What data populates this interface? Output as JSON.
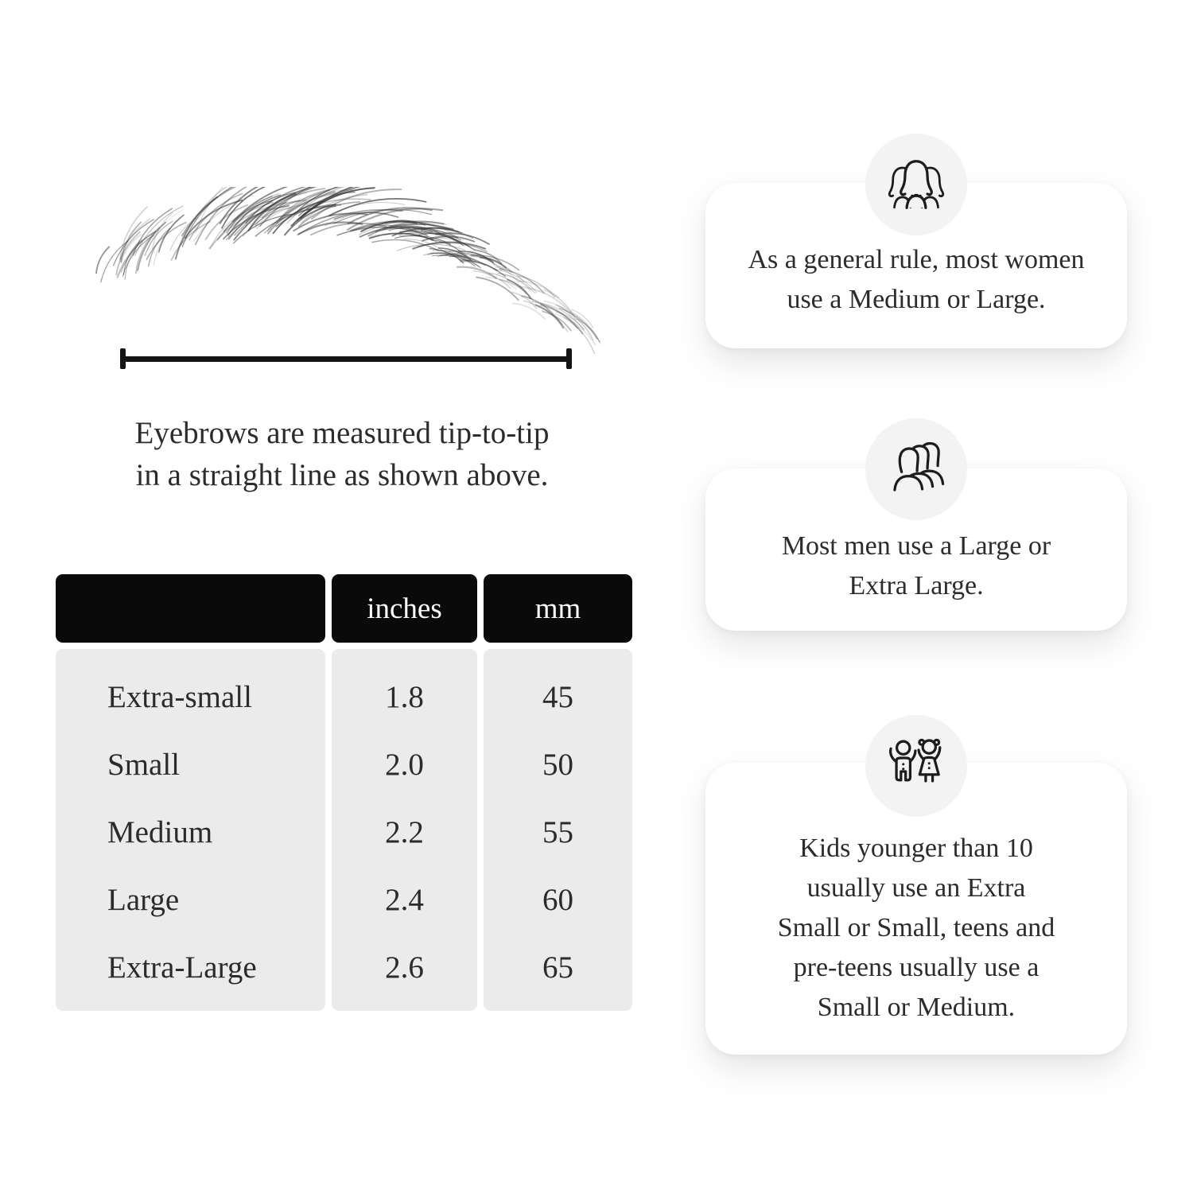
{
  "page": {
    "background": "#ffffff"
  },
  "diagram": {
    "caption_lines": [
      "Eyebrows are measured tip-to-tip",
      "in a straight line as shown above."
    ]
  },
  "size_table": {
    "header": {
      "label": "",
      "inches": "inches",
      "mm": "mm"
    },
    "rows": [
      {
        "label": "Extra-small",
        "inches": "1.8",
        "mm": "45"
      },
      {
        "label": "Small",
        "inches": "2.0",
        "mm": "50"
      },
      {
        "label": "Medium",
        "inches": "2.2",
        "mm": "55"
      },
      {
        "label": "Large",
        "inches": "2.4",
        "mm": "60"
      },
      {
        "label": "Extra-Large",
        "inches": "2.6",
        "mm": "65"
      }
    ],
    "colors": {
      "header_bg": "#0a0a0a",
      "header_text": "#ffffff",
      "body_bg": "#ebebeb",
      "text": "#2b2b2b"
    }
  },
  "cards": [
    {
      "icon": "women-group-icon",
      "lines": [
        "As a general rule, most women",
        "use a Medium or Large."
      ]
    },
    {
      "icon": "men-group-icon",
      "lines": [
        "Most men use a Large or",
        "Extra Large."
      ]
    },
    {
      "icon": "kids-icon",
      "lines": [
        "Kids younger than 10",
        "usually use an Extra",
        "Small or Small, teens and",
        "pre-teens usually use a",
        "Small or Medium."
      ]
    }
  ]
}
